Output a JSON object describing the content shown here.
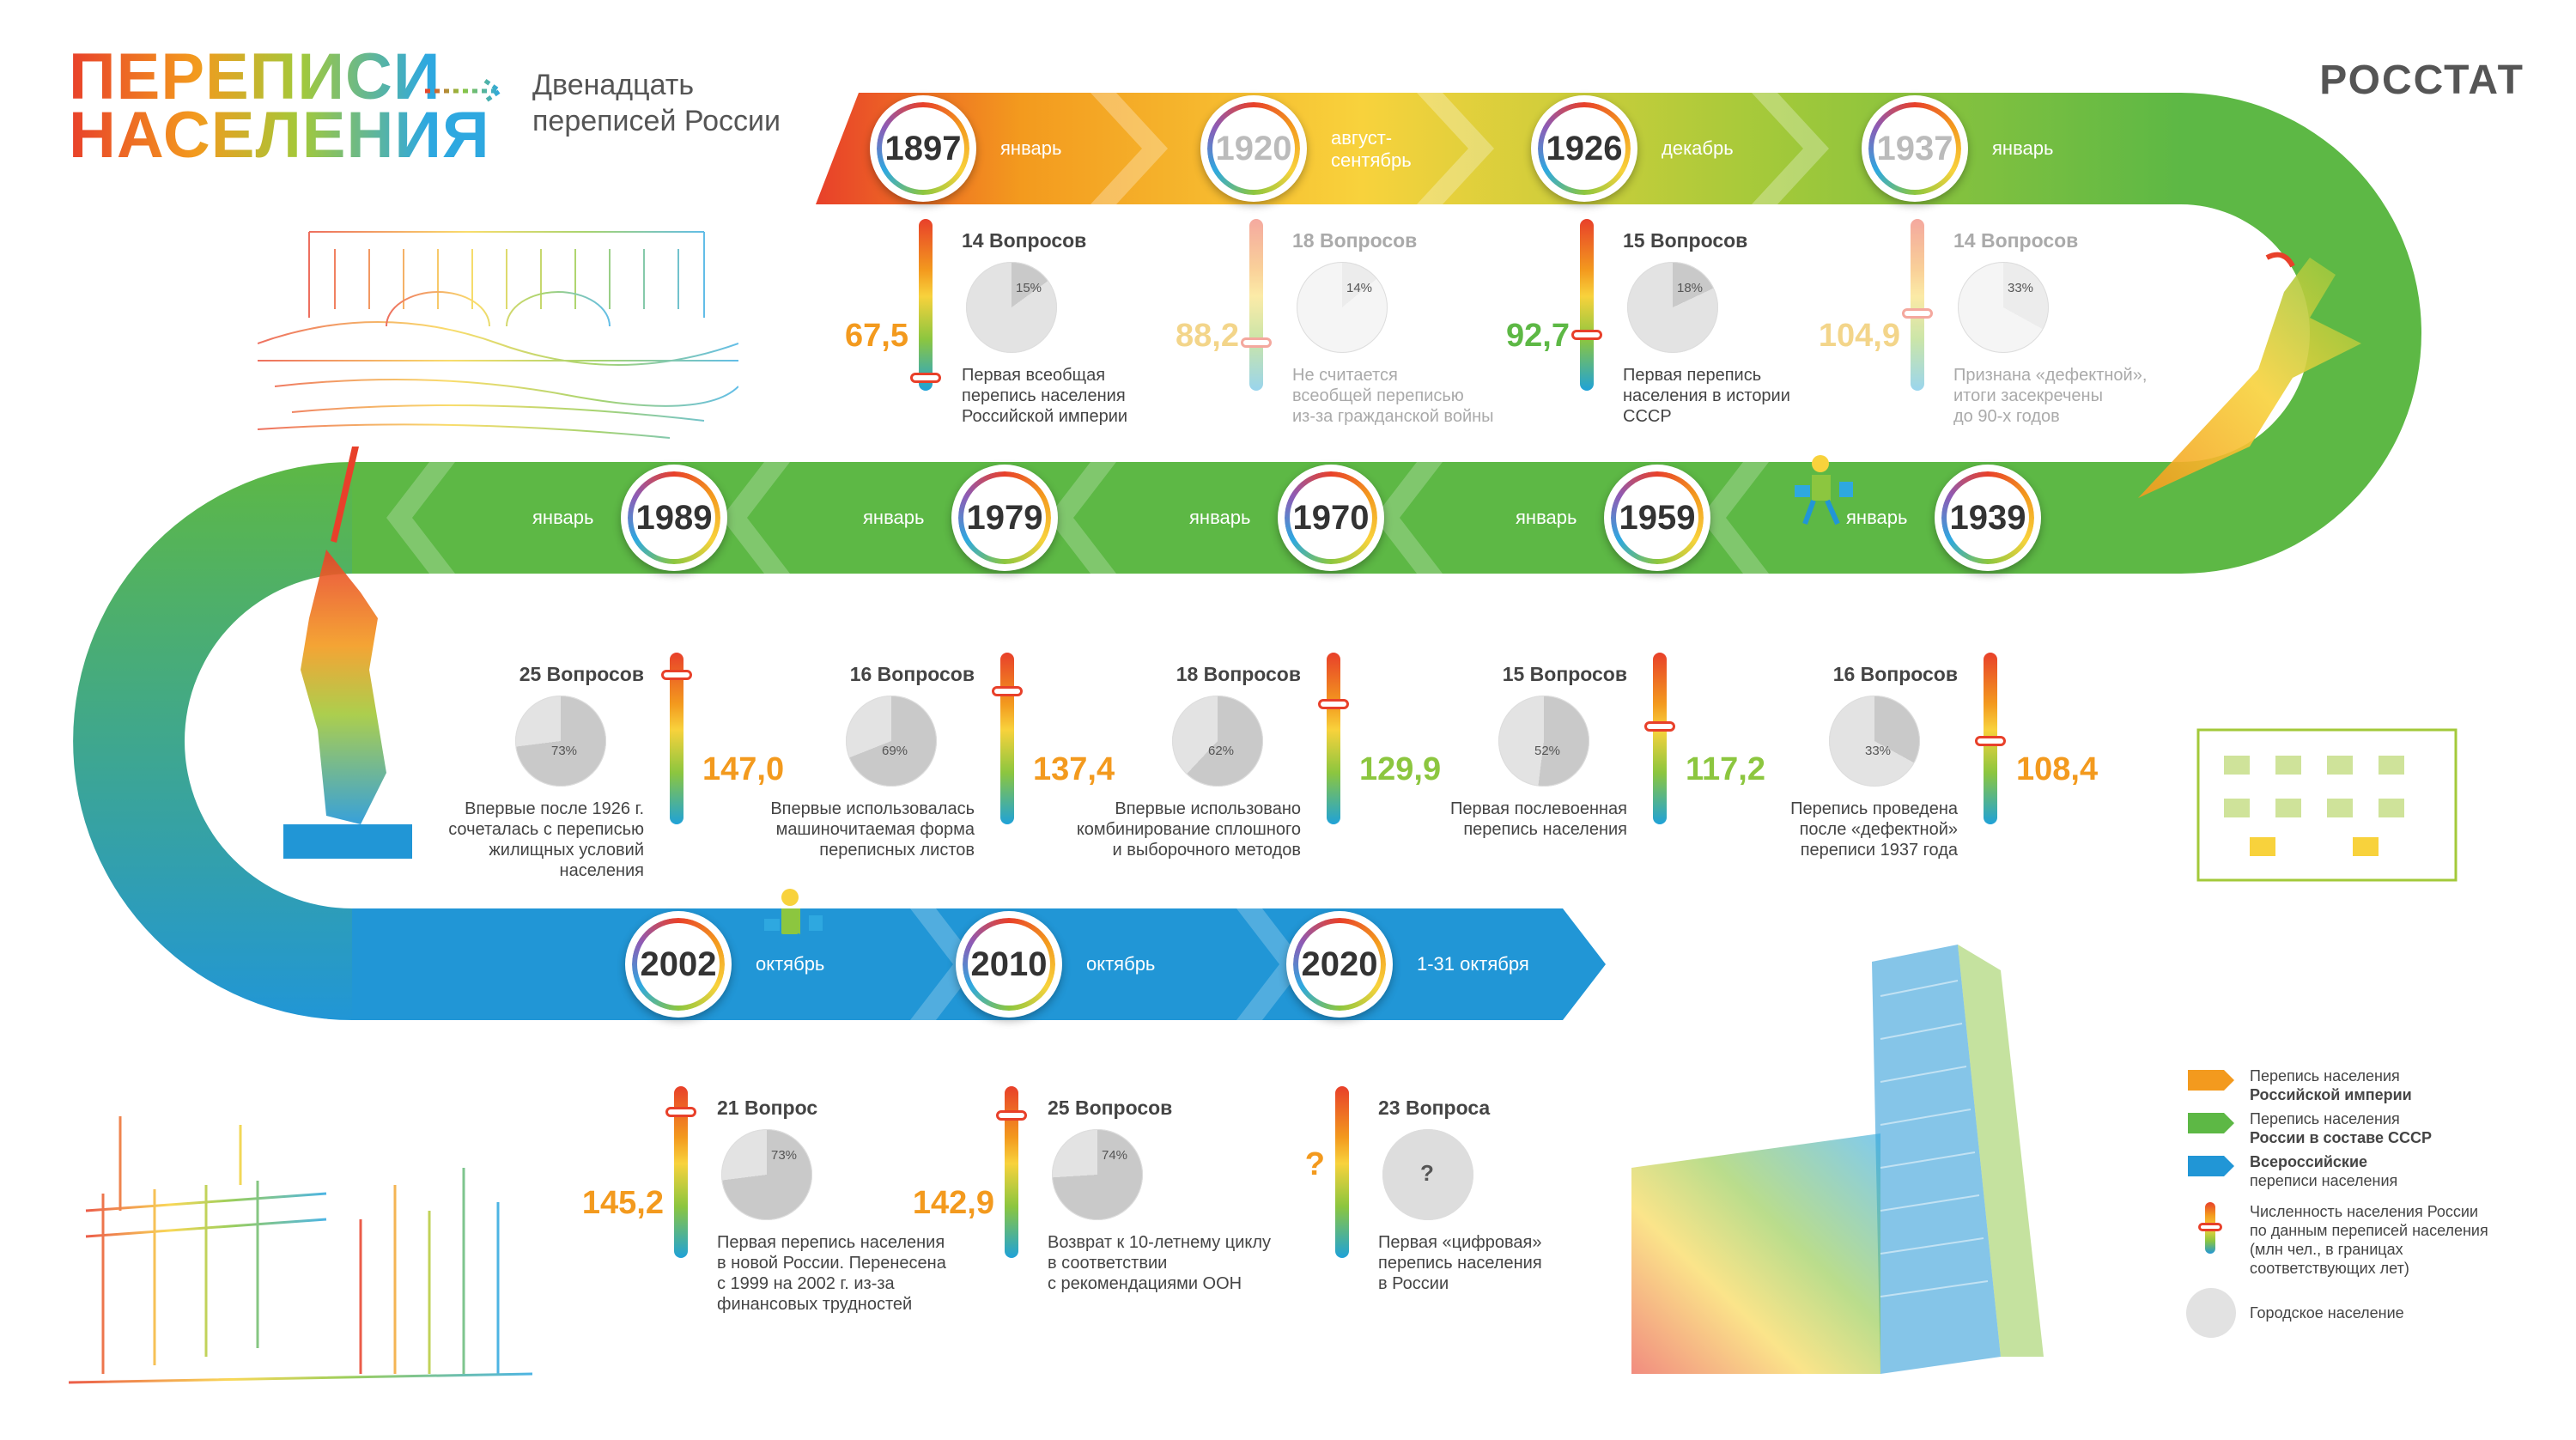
{
  "header": {
    "logo_line1": "ПЕРЕПИСИ",
    "logo_line2": "НАСЕЛЕНИЯ",
    "subtitle_line1": "Двенадцать",
    "subtitle_line2": "переписей России",
    "brand": "РОССТАТ"
  },
  "censuses": [
    {
      "year": "1897",
      "month": "январь",
      "questions": "14 Вопросов",
      "urban": "15%",
      "urban_share": 0.15,
      "population": "67,5",
      "population_value": 67.5,
      "note": [
        "Первая всеобщая",
        "перепись населения",
        "Российской империи"
      ],
      "faded": false
    },
    {
      "year": "1920",
      "month": "август-\nсентябрь",
      "questions": "18 Вопросов",
      "urban": "14%",
      "urban_share": 0.14,
      "population": "88,2",
      "population_value": 88.2,
      "note": [
        "Не считается",
        "всеобщей переписью",
        "из-за гражданской войны"
      ],
      "faded": true
    },
    {
      "year": "1926",
      "month": "декабрь",
      "questions": "15 Вопросов",
      "urban": "18%",
      "urban_share": 0.18,
      "population": "92,7",
      "population_value": 92.7,
      "note": [
        "Первая перепись",
        "населения в истории",
        "СССР"
      ],
      "faded": false
    },
    {
      "year": "1937",
      "month": "январь",
      "questions": "14 Вопросов",
      "urban": "33%",
      "urban_share": 0.33,
      "population": "104,9",
      "population_value": 104.9,
      "note": [
        "Признана «дефектной»,",
        "итоги засекречены",
        "до 90-х годов"
      ],
      "faded": true
    },
    {
      "year": "1989",
      "month": "январь",
      "questions": "25 Вопросов",
      "urban": "73%",
      "urban_share": 0.73,
      "population": "147,0",
      "population_value": 147.0,
      "note": [
        "Впервые после 1926 г.",
        "сочеталась с переписью",
        "жилищных условий",
        "населения"
      ],
      "faded": false
    },
    {
      "year": "1979",
      "month": "январь",
      "questions": "16 Вопросов",
      "urban": "69%",
      "urban_share": 0.69,
      "population": "137,4",
      "population_value": 137.4,
      "note": [
        "Впервые использовалась",
        "машиночитаемая форма",
        "переписных листов"
      ],
      "faded": false
    },
    {
      "year": "1970",
      "month": "январь",
      "questions": "18 Вопросов",
      "urban": "62%",
      "urban_share": 0.62,
      "population": "129,9",
      "population_value": 129.9,
      "note": [
        "Впервые использовано",
        "комбинирование сплошного",
        "и выборочного методов"
      ],
      "faded": false
    },
    {
      "year": "1959",
      "month": "январь",
      "questions": "15 Вопросов",
      "urban": "52%",
      "urban_share": 0.52,
      "population": "117,2",
      "population_value": 117.2,
      "note": [
        "Первая послевоенная",
        "перепись населения"
      ],
      "faded": false
    },
    {
      "year": "1939",
      "month": "январь",
      "questions": "16 Вопросов",
      "urban": "33%",
      "urban_share": 0.33,
      "population": "108,4",
      "population_value": 108.4,
      "note": [
        "Перепись проведена",
        "после «дефектной»",
        "переписи 1937 года"
      ],
      "faded": false
    },
    {
      "year": "2002",
      "month": "октябрь",
      "questions": "21 Вопрос",
      "urban": "73%",
      "urban_share": 0.73,
      "population": "145,2",
      "population_value": 145.2,
      "note": [
        "Первая перепись населения",
        "в новой России. Перенесена",
        "с 1999 на 2002 г. из-за",
        "финансовых трудностей"
      ],
      "faded": false
    },
    {
      "year": "2010",
      "month": "октябрь",
      "questions": "25 Вопросов",
      "urban": "74%",
      "urban_share": 0.74,
      "population": "142,9",
      "population_value": 142.9,
      "note": [
        "Возврат к 10-летнему циклу",
        "в соответствии",
        "с рекомендациями ООН"
      ],
      "faded": false
    },
    {
      "year": "2020",
      "month": "1-31 октября",
      "questions": "23 Вопроса",
      "urban": "?",
      "urban_share": null,
      "population": "?",
      "population_value": null,
      "note": [
        "Первая «цифровая»",
        "перепись населения",
        "в России"
      ],
      "faded": false
    }
  ],
  "legend": [
    {
      "line1": "Перепись населения",
      "line2": "Российской империи",
      "bold": 2,
      "color": "#f39a1e"
    },
    {
      "line1": "Перепись населения",
      "line2": "России в составе СССР",
      "bold": 2,
      "color": "#5db845"
    },
    {
      "line1": "Всероссийские",
      "line2": "переписи населения",
      "bold": 1,
      "color": "#2196d6"
    },
    {
      "line1": "Численность населения России",
      "line2": "по данным переписей населения",
      "line3": "(млн чел., в границах",
      "line4": "соответствующих лет)",
      "bold": 0,
      "color": "gradient"
    },
    {
      "line1": "Городское население",
      "bold": 0,
      "color": "#ddd"
    }
  ],
  "colors": {
    "row1_start": "#e8402a",
    "row1_mid": "#f8d23c",
    "row2": "#5db845",
    "row3": "#2196d6"
  }
}
